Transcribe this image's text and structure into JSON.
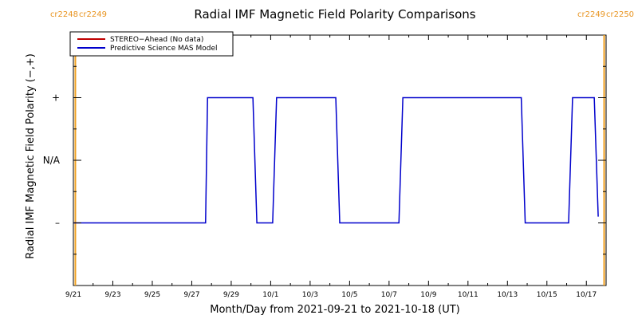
{
  "chart_data": {
    "type": "line",
    "title": "Radial IMF Magnetic Field Polarity Comparisons",
    "xlabel": "Month/Day from 2021-09-21 to 2021-10-18 (UT)",
    "ylabel": "Radial IMF Magnetic Field Polarity (−,+)",
    "xlim": [
      "2021-09-21",
      "2021-10-18"
    ],
    "x_ticks": [
      "9/21",
      "9/23",
      "9/25",
      "9/27",
      "9/29",
      "10/1",
      "10/3",
      "10/5",
      "10/7",
      "10/9",
      "10/11",
      "10/13",
      "10/15",
      "10/17"
    ],
    "y_ticks": [
      "+",
      "N/A",
      "–"
    ],
    "y_tick_values": [
      1,
      0,
      -1
    ],
    "ylim": [
      -2,
      2
    ],
    "legend": [
      {
        "name": "STEREO−Ahead (No data)",
        "color": "#c00000"
      },
      {
        "name": "Predictive Science MAS Model",
        "color": "#0000cc"
      }
    ],
    "legend_position": "top-left",
    "carrington_markers": [
      {
        "day": 0.1,
        "labels": [
          "cr2248",
          "cr2249"
        ],
        "label_side": "left"
      },
      {
        "day": 26.9,
        "labels": [
          "cr2249",
          "cr2250"
        ],
        "label_side": "right"
      }
    ],
    "marker_color": "#f0a020",
    "series": [
      {
        "name": "Predictive Science MAS Model",
        "color": "#0000cc",
        "points": [
          [
            0.0,
            -1
          ],
          [
            6.7,
            -1
          ],
          [
            6.8,
            1
          ],
          [
            9.1,
            1
          ],
          [
            9.3,
            -1
          ],
          [
            10.1,
            -1
          ],
          [
            10.3,
            1
          ],
          [
            13.3,
            1
          ],
          [
            13.5,
            -1
          ],
          [
            16.5,
            -1
          ],
          [
            16.7,
            1
          ],
          [
            22.7,
            1
          ],
          [
            22.9,
            -1
          ],
          [
            25.1,
            -1
          ],
          [
            25.3,
            1
          ],
          [
            26.4,
            1
          ],
          [
            26.6,
            -0.9
          ]
        ]
      }
    ]
  }
}
